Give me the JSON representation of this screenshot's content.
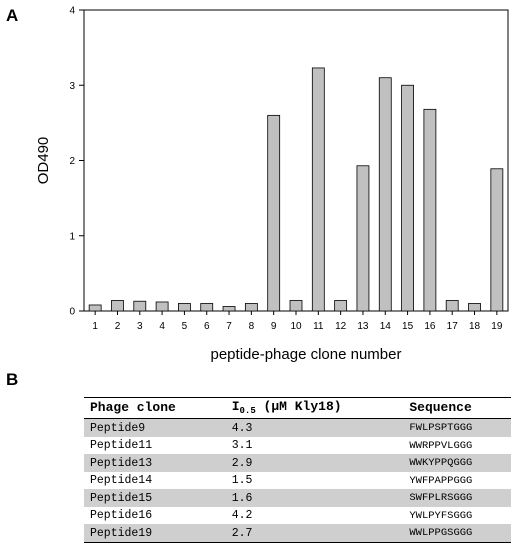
{
  "panels": {
    "a": "A",
    "b": "B"
  },
  "chart_data": {
    "type": "bar",
    "title": "",
    "xlabel": "peptide-phage clone number",
    "ylabel": "OD490",
    "ylim": [
      0,
      4
    ],
    "yticks": [
      0,
      1,
      2,
      3,
      4
    ],
    "categories": [
      "1",
      "2",
      "3",
      "4",
      "5",
      "6",
      "7",
      "8",
      "9",
      "10",
      "11",
      "12",
      "13",
      "14",
      "15",
      "16",
      "17",
      "18",
      "19"
    ],
    "values": [
      0.08,
      0.14,
      0.13,
      0.12,
      0.1,
      0.1,
      0.06,
      0.1,
      2.6,
      0.14,
      3.23,
      0.14,
      1.93,
      3.1,
      3.0,
      2.68,
      0.14,
      0.1,
      1.89
    ],
    "bar_color": "#c0c0c0",
    "grid": false,
    "legend": "none"
  },
  "table": {
    "headers": {
      "clone": "Phage clone",
      "i_main": "I",
      "i_sub": "0.5",
      "i_rest": "(μM Kly18)",
      "sequence": "Sequence"
    },
    "rows": [
      {
        "clone": "Peptide9",
        "i05": "4.3",
        "sequence": "FWLPSPTGGG"
      },
      {
        "clone": "Peptide11",
        "i05": "3.1",
        "sequence": "WWRPPVLGGG"
      },
      {
        "clone": "Peptide13",
        "i05": "2.9",
        "sequence": "WWKYPPQGGG"
      },
      {
        "clone": "Peptide14",
        "i05": "1.5",
        "sequence": "YWFPAPPGGG"
      },
      {
        "clone": "Peptide15",
        "i05": "1.6",
        "sequence": "SWFPLRSGGG"
      },
      {
        "clone": "Peptide16",
        "i05": "4.2",
        "sequence": "YWLPYFSGGG"
      },
      {
        "clone": "Peptide19",
        "i05": "2.7",
        "sequence": "WWLPPGSGGG"
      }
    ]
  }
}
